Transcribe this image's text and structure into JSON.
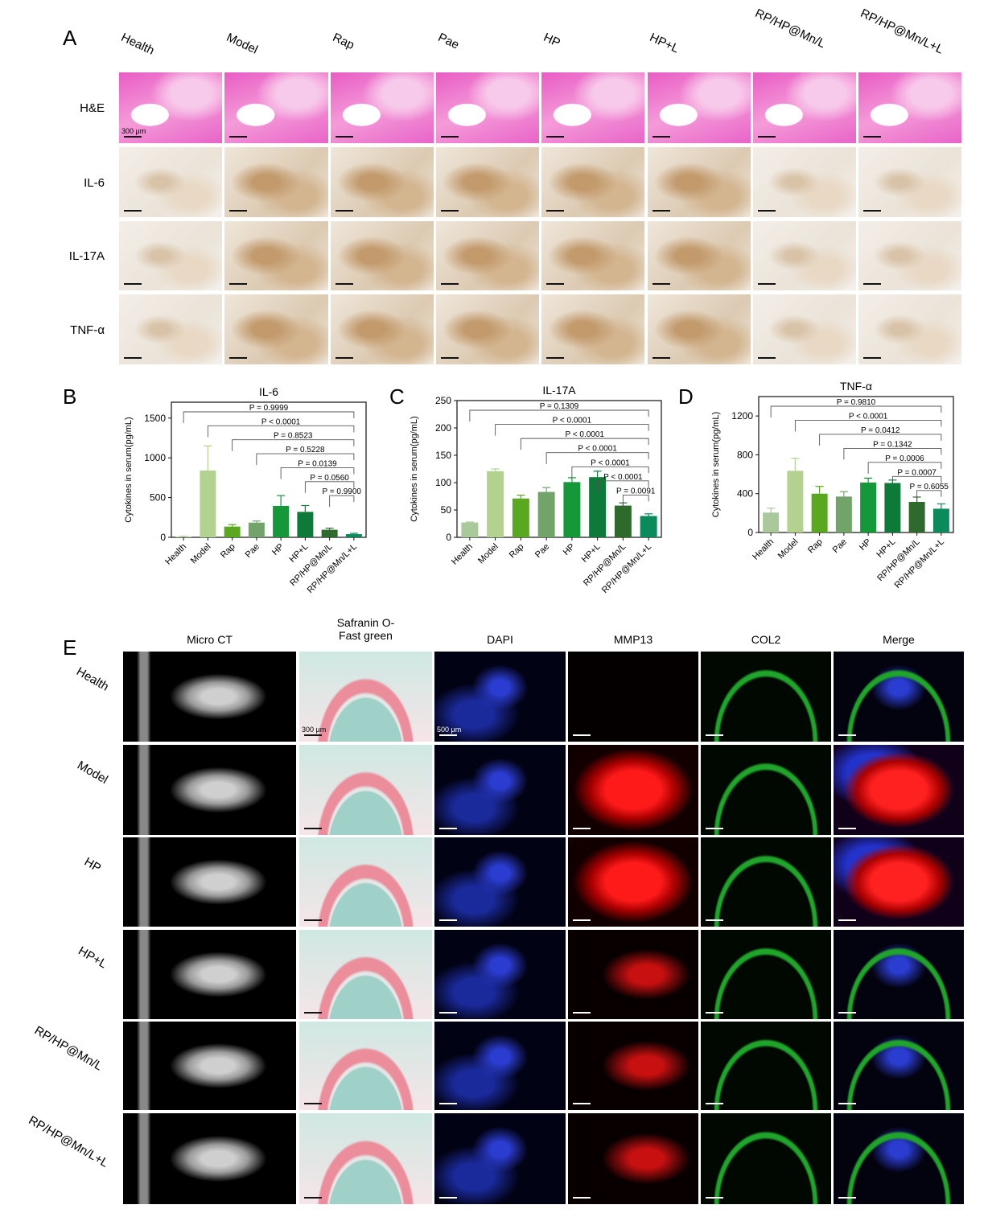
{
  "panels": {
    "A": "A",
    "B": "B",
    "C": "C",
    "D": "D",
    "E": "E"
  },
  "panelA": {
    "columns": [
      "Health",
      "Model",
      "Rap",
      "Pae",
      "HP",
      "HP+L",
      "RP/HP@Mn/L",
      "RP/HP@Mn/L+L"
    ],
    "rows": [
      "H&E",
      "IL-6",
      "IL-17A",
      "TNF-α"
    ],
    "scale_bar": "300 μm"
  },
  "chart_data": [
    {
      "type": "bar",
      "title": "IL-6",
      "ylabel": "Cytokines in serum(pg/mL)",
      "xlabel": "",
      "categories": [
        "Health",
        "Model",
        "Rap",
        "Pae",
        "HP",
        "HP+L",
        "RP/HP@Mn/L",
        "RP/HP@Mn/L+L"
      ],
      "values": [
        5,
        840,
        135,
        185,
        395,
        320,
        95,
        40
      ],
      "errors": [
        8,
        310,
        25,
        20,
        130,
        80,
        20,
        10
      ],
      "ylim": [
        0,
        1700
      ],
      "yticks": [
        0,
        500,
        1000,
        1500
      ],
      "comparisons": [
        {
          "from": "Health",
          "to": "RP/HP@Mn/L+L",
          "label": "P = 0.9999"
        },
        {
          "from": "Model",
          "to": "RP/HP@Mn/L+L",
          "label": "P < 0.0001"
        },
        {
          "from": "Rap",
          "to": "RP/HP@Mn/L+L",
          "label": "P = 0.8523"
        },
        {
          "from": "Pae",
          "to": "RP/HP@Mn/L+L",
          "label": "P = 0.5228"
        },
        {
          "from": "HP",
          "to": "RP/HP@Mn/L+L",
          "label": "P = 0.0139"
        },
        {
          "from": "HP+L",
          "to": "RP/HP@Mn/L+L",
          "label": "P = 0.0560"
        },
        {
          "from": "RP/HP@Mn/L",
          "to": "RP/HP@Mn/L+L",
          "label": "P = 0.9900"
        }
      ]
    },
    {
      "type": "bar",
      "title": "IL-17A",
      "ylabel": "Cytokines in serum(pg/mL)",
      "xlabel": "",
      "categories": [
        "Health",
        "Model",
        "Rap",
        "Pae",
        "HP",
        "HP+L",
        "RP/HP@Mn/L",
        "RP/HP@Mn/L+L"
      ],
      "values": [
        27,
        121,
        71,
        83,
        101,
        110,
        58,
        39
      ],
      "errors": [
        1,
        4,
        6,
        8,
        8,
        11,
        5,
        4
      ],
      "ylim": [
        0,
        250
      ],
      "yticks": [
        0,
        50,
        100,
        150,
        200,
        250
      ],
      "comparisons": [
        {
          "from": "Health",
          "to": "RP/HP@Mn/L+L",
          "label": "P = 0.1309"
        },
        {
          "from": "Model",
          "to": "RP/HP@Mn/L+L",
          "label": "P < 0.0001"
        },
        {
          "from": "Rap",
          "to": "RP/HP@Mn/L+L",
          "label": "P < 0.0001"
        },
        {
          "from": "Pae",
          "to": "RP/HP@Mn/L+L",
          "label": "P < 0.0001"
        },
        {
          "from": "HP",
          "to": "RP/HP@Mn/L+L",
          "label": "P < 0.0001"
        },
        {
          "from": "HP+L",
          "to": "RP/HP@Mn/L+L",
          "label": "P < 0.0001"
        },
        {
          "from": "RP/HP@Mn/L",
          "to": "RP/HP@Mn/L+L",
          "label": "P = 0.0091"
        }
      ]
    },
    {
      "type": "bar",
      "title": "TNF-α",
      "ylabel": "Cytokines in serum(pg/mL)",
      "xlabel": "",
      "categories": [
        "Health",
        "Model",
        "Rap",
        "Pae",
        "HP",
        "HP+L",
        "RP/HP@Mn/L",
        "RP/HP@Mn/L+L"
      ],
      "values": [
        205,
        635,
        400,
        370,
        515,
        510,
        315,
        245
      ],
      "errors": [
        45,
        130,
        75,
        50,
        45,
        30,
        50,
        50
      ],
      "ylim": [
        0,
        1400
      ],
      "yticks": [
        0,
        400,
        800,
        1200
      ],
      "comparisons": [
        {
          "from": "Health",
          "to": "RP/HP@Mn/L+L",
          "label": "P = 0.9810"
        },
        {
          "from": "Model",
          "to": "RP/HP@Mn/L+L",
          "label": "P < 0.0001"
        },
        {
          "from": "Rap",
          "to": "RP/HP@Mn/L+L",
          "label": "P = 0.0412"
        },
        {
          "from": "Pae",
          "to": "RP/HP@Mn/L+L",
          "label": "P = 0.1342"
        },
        {
          "from": "HP",
          "to": "RP/HP@Mn/L+L",
          "label": "P = 0.0006"
        },
        {
          "from": "HP+L",
          "to": "RP/HP@Mn/L+L",
          "label": "P = 0.0007"
        },
        {
          "from": "RP/HP@Mn/L",
          "to": "RP/HP@Mn/L+L",
          "label": "P = 0.6055"
        }
      ]
    }
  ],
  "bar_colors": [
    "#a9c99a",
    "#b3d18f",
    "#5aa820",
    "#72a46a",
    "#14983a",
    "#0e7a3a",
    "#2e6a2c",
    "#0b8a5c"
  ],
  "panelE": {
    "columns": [
      "Micro CT",
      "Safranin O-\nFast green",
      "DAPI",
      "MMP13",
      "COL2",
      "Merge"
    ],
    "rows": [
      "Health",
      "Model",
      "HP",
      "HP+L",
      "RP/HP@Mn/L",
      "RP/HP@Mn/L+L"
    ],
    "scale_bar_saf": "300 μm",
    "scale_bar_if": "500 μm"
  }
}
